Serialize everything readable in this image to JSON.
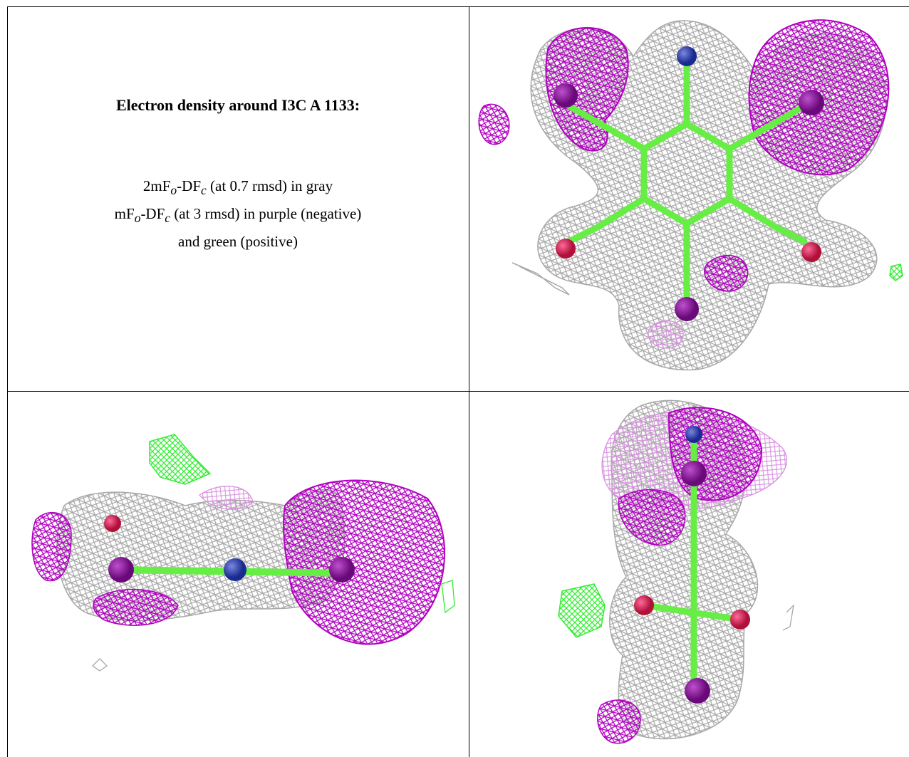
{
  "caption": {
    "title": "Electron density around I3C A 1133:",
    "line1": {
      "a": "2mF",
      "b": "o",
      "c": "-DF",
      "d": "c",
      "e": " (at 0.7 rmsd) in gray"
    },
    "line2": {
      "a": "mF",
      "b": "o",
      "c": "-DF",
      "d": "c",
      "e": " (at 3 rmsd) in purple (negative)"
    },
    "line3": "and green (positive)"
  },
  "colors": {
    "mesh_gray": "#a8a8a8",
    "mesh_purple": "#b000c0",
    "mesh_purple_light": "#d890e0",
    "mesh_green": "#33ee33",
    "bond": "#66ee44",
    "atom_iodine": "#8a1a9a",
    "atom_nitrogen": "#3344bb",
    "atom_oxygen": "#e01a5a"
  },
  "panels": [
    {
      "name": "top-view",
      "orientation": "face-on"
    },
    {
      "name": "side-view",
      "orientation": "edge-on horizontal"
    },
    {
      "name": "end-view",
      "orientation": "edge-on vertical"
    }
  ]
}
